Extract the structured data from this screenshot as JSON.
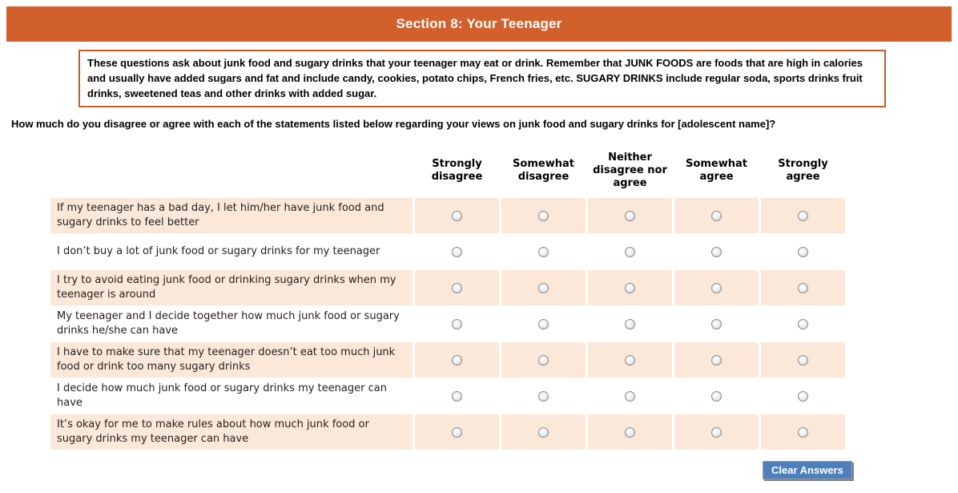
{
  "header": {
    "title": "Section 8: Your Teenager"
  },
  "instructions": {
    "text": "These questions ask about junk food and sugary drinks that your teenager may eat or drink. Remember that JUNK FOODS are foods that are high in calories and usually have added sugars and fat and include candy, cookies, potato chips, French fries, etc. SUGARY DRINKS include regular soda, sports drinks fruit drinks, sweetened teas and other drinks with added sugar."
  },
  "question": {
    "text": "How much do you disagree or agree with each of the statements listed below regarding your views on junk food and sugary drinks for [adolescent name]?"
  },
  "matrix": {
    "columns": [
      "Strongly disagree",
      "Somewhat disagree",
      "Neither disagree nor agree",
      "Somewhat agree",
      "Strongly agree"
    ],
    "rows": [
      {
        "label": "If my teenager has a bad day, I let him/her have junk food and sugary drinks to feel better",
        "selected": null
      },
      {
        "label": "I don’t buy a lot of junk food or sugary drinks for my teenager",
        "selected": null
      },
      {
        "label": "I try to avoid eating junk food or drinking sugary drinks when my teenager is around",
        "selected": null
      },
      {
        "label": "My teenager and I decide together how much junk food or sugary drinks he/she can have",
        "selected": null
      },
      {
        "label": "I have to make sure that my teenager doesn’t eat too much junk food or drink too many sugary drinks",
        "selected": null
      },
      {
        "label": "I decide how much junk food or sugary drinks my teenager can have",
        "selected": null
      },
      {
        "label": "It’s okay for me to make rules about how much junk food or sugary drinks my teenager can have",
        "selected": null
      }
    ]
  },
  "buttons": {
    "clear": "Clear Answers"
  },
  "colors": {
    "header_bar": "#d2602c",
    "box_border": "#c95c22",
    "row_shade": "#fce8d9",
    "button_blue": "#4d80bd",
    "button_text": "#ffffff"
  }
}
